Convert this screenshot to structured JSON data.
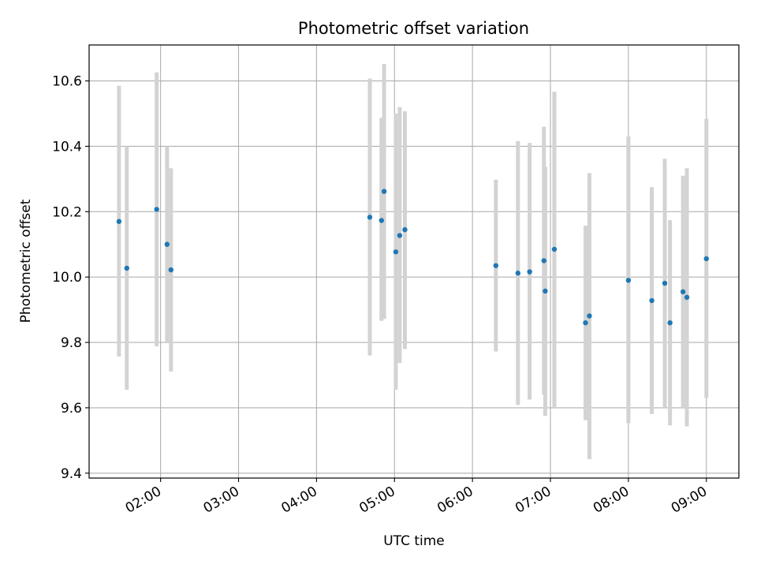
{
  "chart_data": {
    "type": "scatter",
    "title": "Photometric offset variation",
    "xlabel": "UTC time",
    "ylabel": "Photometric offset",
    "x_axis_type": "time",
    "xlim": [
      "01:05",
      "09:25"
    ],
    "ylim": [
      9.385,
      10.71
    ],
    "x_ticks": [
      "02:00",
      "03:00",
      "04:00",
      "05:00",
      "06:00",
      "07:00",
      "08:00",
      "09:00"
    ],
    "y_ticks": [
      "9.4",
      "9.6",
      "9.8",
      "10.0",
      "10.2",
      "10.4",
      "10.6"
    ],
    "grid": true,
    "point_color": "#1f77b4",
    "errorbar_color": "#d3d3d3",
    "points": [
      {
        "t": "01:28",
        "y": 10.17,
        "low": 9.757,
        "high": 10.585
      },
      {
        "t": "01:34",
        "y": 10.027,
        "low": 9.655,
        "high": 10.4
      },
      {
        "t": "01:57",
        "y": 10.207,
        "low": 9.788,
        "high": 10.626
      },
      {
        "t": "02:05",
        "y": 10.1,
        "low": 9.8,
        "high": 10.4
      },
      {
        "t": "02:08",
        "y": 10.022,
        "low": 9.711,
        "high": 10.333
      },
      {
        "t": "04:41",
        "y": 10.183,
        "low": 9.76,
        "high": 10.607
      },
      {
        "t": "04:50",
        "y": 10.173,
        "low": 9.866,
        "high": 10.487
      },
      {
        "t": "04:52",
        "y": 10.262,
        "low": 9.872,
        "high": 10.652
      },
      {
        "t": "05:01",
        "y": 10.077,
        "low": 9.655,
        "high": 10.5
      },
      {
        "t": "05:04",
        "y": 10.127,
        "low": 9.737,
        "high": 10.52
      },
      {
        "t": "05:08",
        "y": 10.145,
        "low": 9.78,
        "high": 10.507
      },
      {
        "t": "06:18",
        "y": 10.035,
        "low": 9.772,
        "high": 10.298
      },
      {
        "t": "06:35",
        "y": 10.012,
        "low": 9.609,
        "high": 10.416
      },
      {
        "t": "06:44",
        "y": 10.016,
        "low": 9.625,
        "high": 10.41
      },
      {
        "t": "06:55",
        "y": 10.05,
        "low": 9.64,
        "high": 10.46
      },
      {
        "t": "06:56",
        "y": 9.957,
        "low": 9.575,
        "high": 10.337
      },
      {
        "t": "07:03",
        "y": 10.085,
        "low": 9.6,
        "high": 10.567
      },
      {
        "t": "07:27",
        "y": 9.86,
        "low": 9.562,
        "high": 10.157
      },
      {
        "t": "07:30",
        "y": 9.881,
        "low": 9.443,
        "high": 10.318
      },
      {
        "t": "08:00",
        "y": 9.99,
        "low": 9.553,
        "high": 10.43
      },
      {
        "t": "08:18",
        "y": 9.928,
        "low": 9.581,
        "high": 10.275
      },
      {
        "t": "08:28",
        "y": 9.981,
        "low": 9.6,
        "high": 10.362
      },
      {
        "t": "08:32",
        "y": 9.86,
        "low": 9.546,
        "high": 10.174
      },
      {
        "t": "08:42",
        "y": 9.955,
        "low": 9.6,
        "high": 10.31
      },
      {
        "t": "08:45",
        "y": 9.938,
        "low": 9.543,
        "high": 10.333
      },
      {
        "t": "09:00",
        "y": 10.056,
        "low": 9.63,
        "high": 10.484
      }
    ]
  }
}
